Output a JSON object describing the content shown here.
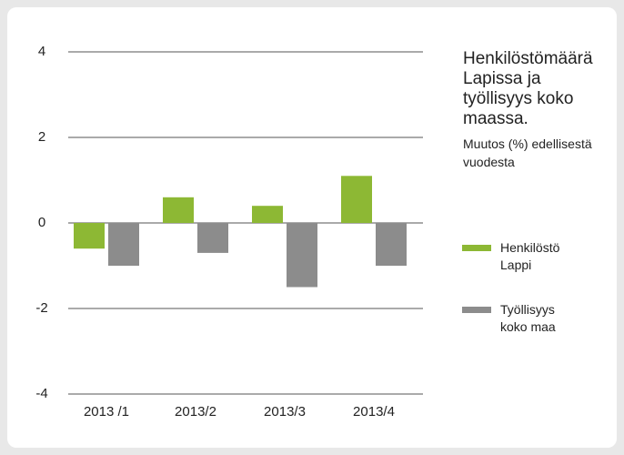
{
  "chart_data": {
    "type": "bar",
    "title": "Henkilöstömäärä Lapissa ja työllisyys koko maassa.",
    "subtitle": "Muutos (%) edellisestä vuodesta",
    "categories": [
      "2013 /1",
      "2013/2",
      "2013/3",
      "2013/4"
    ],
    "series": [
      {
        "name": "Henkilöstö Lappi",
        "color": "#8db834",
        "values": [
          -0.6,
          0.6,
          0.4,
          1.1
        ]
      },
      {
        "name": "Työllisyys koko maa",
        "color": "#8c8c8c",
        "values": [
          -1.0,
          -0.7,
          -1.5,
          -1.0
        ]
      }
    ],
    "ylim": [
      -4,
      4
    ],
    "yticks": [
      -4,
      -2,
      0,
      2,
      4
    ],
    "grid": true
  }
}
